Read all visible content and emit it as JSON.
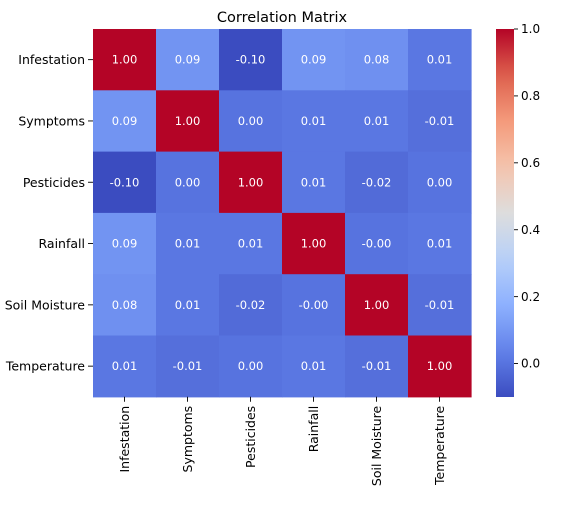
{
  "chart_data": {
    "type": "heatmap",
    "title": "Correlation Matrix",
    "rows": [
      "Infestation",
      "Symptoms",
      "Pesticides",
      "Rainfall",
      "Soil Moisture",
      "Temperature"
    ],
    "columns": [
      "Infestation",
      "Symptoms",
      "Pesticides",
      "Rainfall",
      "Soil Moisture",
      "Temperature"
    ],
    "values": [
      [
        1.0,
        0.09,
        -0.1,
        0.09,
        0.08,
        0.01
      ],
      [
        0.09,
        1.0,
        0.0,
        0.01,
        0.01,
        -0.01
      ],
      [
        -0.1,
        0.0,
        1.0,
        0.01,
        -0.02,
        0.0
      ],
      [
        0.09,
        0.01,
        0.01,
        1.0,
        -0.0,
        0.01
      ],
      [
        0.08,
        0.01,
        -0.02,
        -0.0,
        1.0,
        -0.01
      ],
      [
        0.01,
        -0.01,
        0.0,
        0.01,
        -0.01,
        1.0
      ]
    ],
    "cell_labels": [
      [
        "1.00",
        "0.09",
        "-0.10",
        "0.09",
        "0.08",
        "0.01"
      ],
      [
        "0.09",
        "1.00",
        "0.00",
        "0.01",
        "0.01",
        "-0.01"
      ],
      [
        "-0.10",
        "0.00",
        "1.00",
        "0.01",
        "-0.02",
        "0.00"
      ],
      [
        "0.09",
        "0.01",
        "0.01",
        "1.00",
        "-0.00",
        "0.01"
      ],
      [
        "0.08",
        "0.01",
        "-0.02",
        "-0.00",
        "1.00",
        "-0.01"
      ],
      [
        "0.01",
        "-0.01",
        "0.00",
        "0.01",
        "-0.01",
        "1.00"
      ]
    ],
    "colormap": "coolwarm",
    "color_range": [
      -0.1,
      1.0
    ],
    "colorbar": {
      "ticks": [
        0.0,
        0.2,
        0.4,
        0.6,
        0.8,
        1.0
      ],
      "tick_labels": [
        "0.0",
        "0.2",
        "0.4",
        "0.6",
        "0.8",
        "1.0"
      ]
    },
    "xlabel": "",
    "ylabel": ""
  }
}
